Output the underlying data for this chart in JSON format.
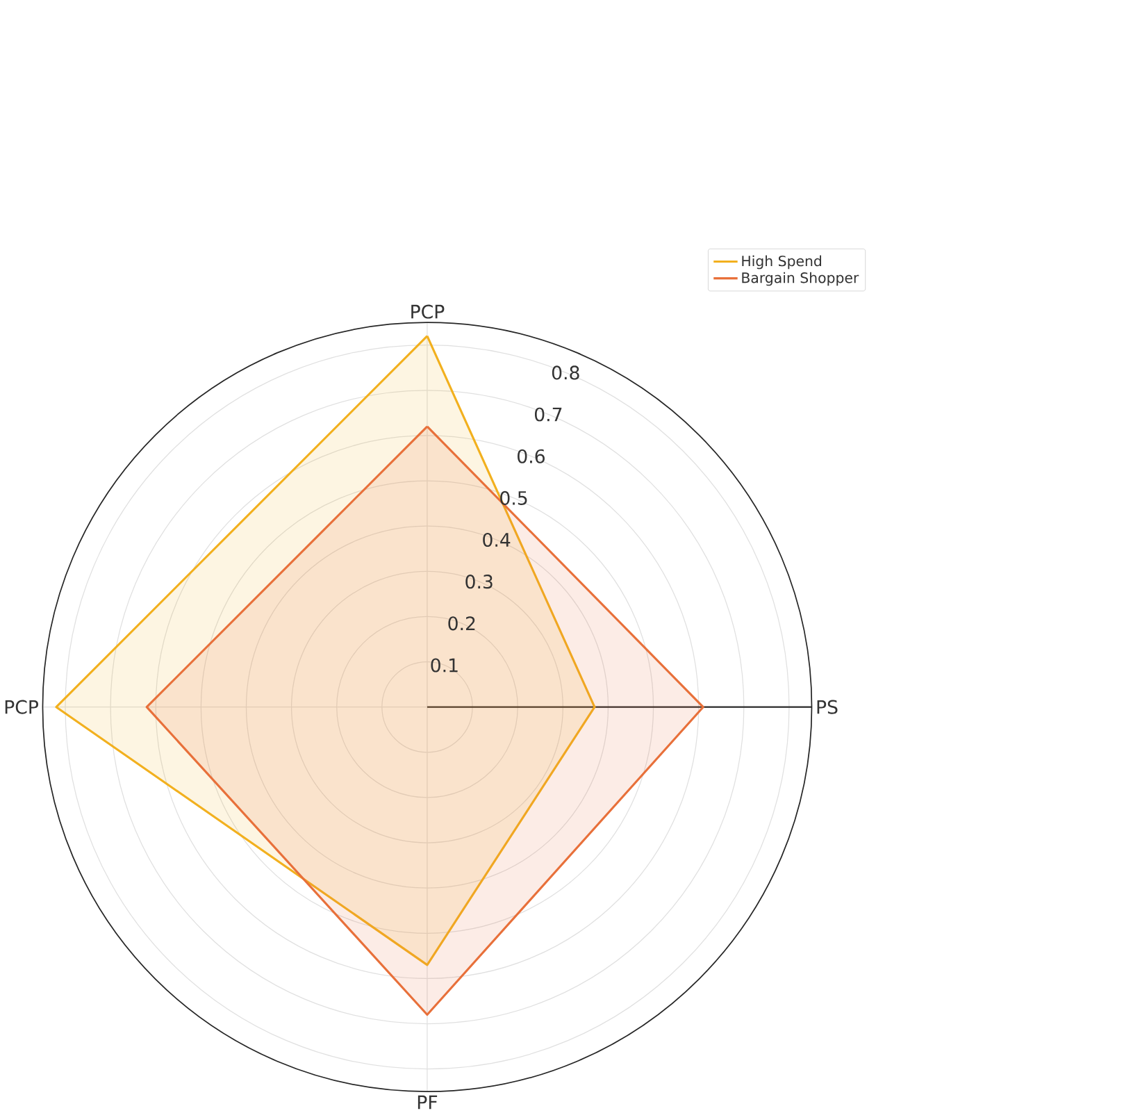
{
  "chart_data": {
    "type": "radar",
    "categories": [
      "PCP",
      "PS",
      "PF",
      "PCP"
    ],
    "series": [
      {
        "name": "High Spend",
        "color": "#f2b01e",
        "values": [
          0.82,
          0.37,
          0.57,
          0.82
        ]
      },
      {
        "name": "Bargain Shopper",
        "color": "#e8703a",
        "values": [
          0.62,
          0.61,
          0.68,
          0.62
        ]
      }
    ],
    "ylim": [
      0,
      0.85
    ],
    "yticks": [
      0.1,
      0.2,
      0.3,
      0.4,
      0.5,
      0.6,
      0.7,
      0.8
    ],
    "grid": true,
    "legend": "top right"
  }
}
